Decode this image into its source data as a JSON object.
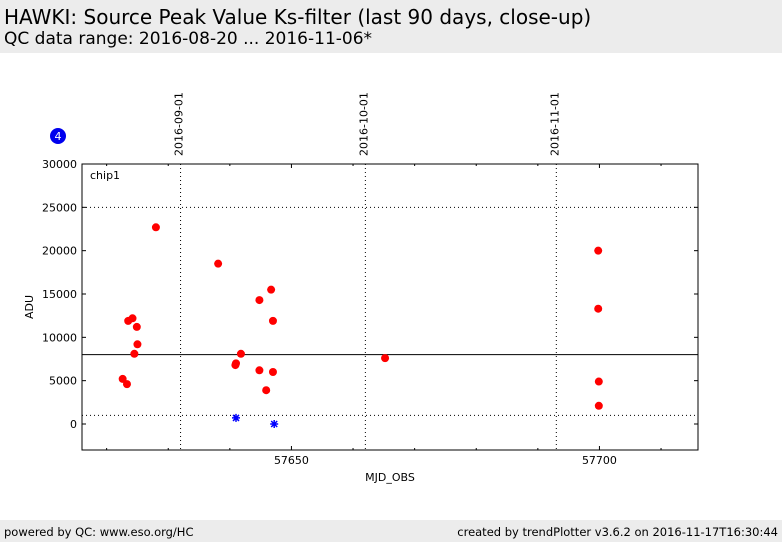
{
  "header": {
    "title": "HAWKI: Source Peak Value Ks-filter (last 90 days, close-up)",
    "subtitle": "QC data range: 2016-08-20 ... 2016-11-06*"
  },
  "footer": {
    "left": "powered by QC: www.eso.org/HC",
    "right": "created by trendPlotter v3.6.2 on 2016-11-17T16:30:44"
  },
  "badge": {
    "value": "4",
    "color": "#0000ee"
  },
  "chart_data": {
    "type": "scatter",
    "panel_label": "chip1",
    "xlabel": "MJD_OBS",
    "ylabel": "ADU",
    "xlim": [
      57616,
      57716
    ],
    "ylim": [
      -3000,
      30000
    ],
    "x_ticks": [
      57650,
      57700
    ],
    "y_ticks": [
      0,
      5000,
      10000,
      15000,
      20000,
      25000,
      30000
    ],
    "date_markers": [
      {
        "x": 57632,
        "label": "2016-09-01"
      },
      {
        "x": 57662,
        "label": "2016-10-01"
      },
      {
        "x": 57693,
        "label": "2016-11-01"
      }
    ],
    "reference_line": 8000,
    "dotted_lines": [
      25000,
      1000
    ],
    "colors": {
      "good": "#ff0000",
      "outlier": "#0000ff",
      "axis": "#000000"
    },
    "series": [
      {
        "marker": "circle",
        "points": [
          [
            57622.6,
            5200
          ],
          [
            57623.3,
            4600
          ],
          [
            57623.5,
            11900
          ],
          [
            57624.2,
            12200
          ],
          [
            57624.5,
            8100
          ],
          [
            57624.9,
            11200
          ],
          [
            57625.0,
            9200
          ],
          [
            57628.0,
            22700
          ],
          [
            57638.1,
            18500
          ],
          [
            57640.9,
            6800
          ],
          [
            57641.0,
            7000
          ],
          [
            57641.8,
            8100
          ],
          [
            57644.8,
            14300
          ],
          [
            57644.8,
            6200
          ],
          [
            57645.9,
            3900
          ],
          [
            57646.7,
            15500
          ],
          [
            57647.0,
            11900
          ],
          [
            57647.0,
            6000
          ],
          [
            57665.2,
            7600
          ],
          [
            57699.8,
            20000
          ],
          [
            57699.8,
            13300
          ],
          [
            57699.9,
            4900
          ],
          [
            57699.9,
            2100
          ]
        ]
      },
      {
        "marker": "star",
        "points": [
          [
            57641.0,
            700
          ],
          [
            57647.2,
            0
          ]
        ]
      }
    ]
  }
}
